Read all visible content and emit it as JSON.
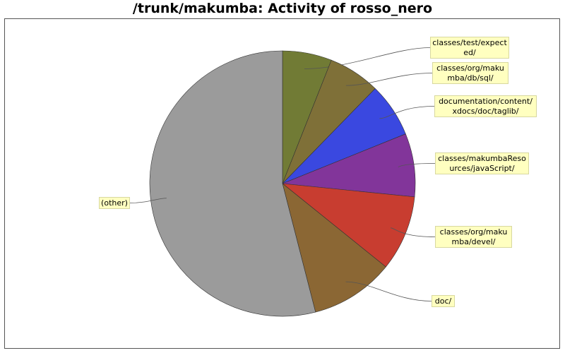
{
  "chart_data": {
    "type": "pie",
    "title": "/trunk/makumba: Activity of rosso_nero",
    "start_angle": "12 o'clock",
    "direction": "clockwise",
    "slices": [
      {
        "label": "classes/test/expected/",
        "value": 6.0,
        "color": "#717b35"
      },
      {
        "label": "classes/org/makumba/db/sql/",
        "value": 6.3,
        "color": "#7f7038"
      },
      {
        "label": "documentation/content/xdocs/doc/taglib/",
        "value": 6.6,
        "color": "#3a48e0"
      },
      {
        "label": "classes/makumbaResources/javaScript/",
        "value": 7.7,
        "color": "#82359a"
      },
      {
        "label": "classes/org/makumba/devel/",
        "value": 9.2,
        "color": "#c83d30"
      },
      {
        "label": "doc/",
        "value": 10.2,
        "color": "#8b6734"
      },
      {
        "label": "(other)",
        "value": 54.0,
        "color": "#9b9b9b"
      }
    ]
  }
}
